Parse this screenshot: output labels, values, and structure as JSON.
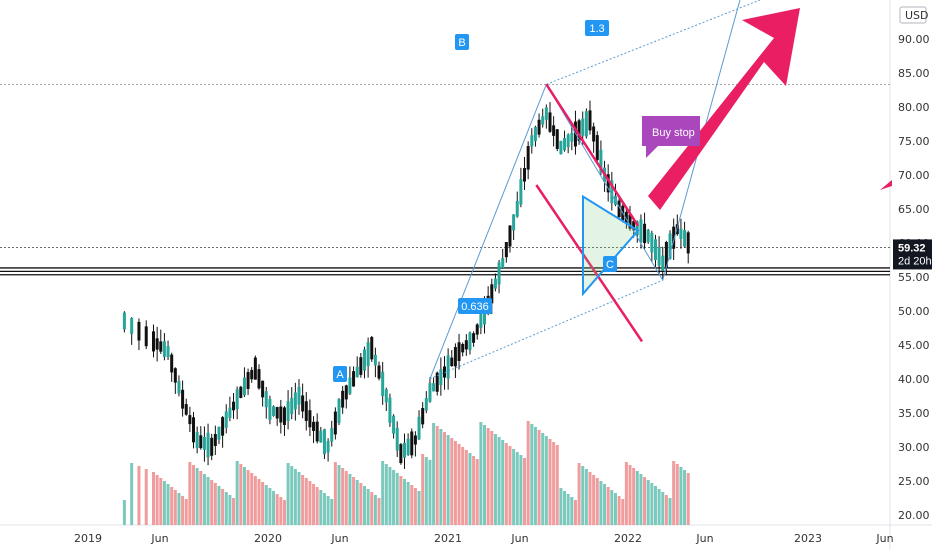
{
  "chart_data": {
    "type": "candlestick",
    "currency_label": "USD",
    "y_ticks": [
      "90.00",
      "85.00",
      "80.00",
      "75.00",
      "70.00",
      "65.00",
      "60.00",
      "55.00",
      "50.00",
      "45.00",
      "40.00",
      "35.00",
      "30.00",
      "25.00",
      "20.00"
    ],
    "x_ticks": [
      "2019",
      "Jun",
      "2020",
      "Jun",
      "2021",
      "Jun",
      "2022",
      "Jun",
      "2023",
      "Jun"
    ],
    "ylim": [
      18.5,
      91
    ],
    "last_price": "59.32",
    "countdown": "2d 20h",
    "price_anchor_points": [
      {
        "x": "2018-09",
        "price": 48.5
      },
      {
        "x": "2018-11",
        "price": 45.5
      },
      {
        "x": "2018-12",
        "price": 44.0
      },
      {
        "x": "2019-01",
        "price": 37.0
      },
      {
        "x": "2019-02",
        "price": 31.0
      },
      {
        "x": "2019-03",
        "price": 30.0
      },
      {
        "x": "2019-04",
        "price": 34.0
      },
      {
        "x": "2019-05",
        "price": 38.0
      },
      {
        "x": "2019-06",
        "price": 41.5
      },
      {
        "x": "2019-07",
        "price": 35.5
      },
      {
        "x": "2019-08",
        "price": 34.5
      },
      {
        "x": "2019-09",
        "price": 37.5
      },
      {
        "x": "2019-10",
        "price": 33.0
      },
      {
        "x": "2019-11",
        "price": 30.0
      },
      {
        "x": "2019-12",
        "price": 37.0
      },
      {
        "x": "2020-01",
        "price": 41.0
      },
      {
        "x": "2020-02",
        "price": 44.5
      },
      {
        "x": "2020-03",
        "price": 37.5
      },
      {
        "x": "2020-04",
        "price": 29.0
      },
      {
        "x": "2020-05",
        "price": 31.0
      },
      {
        "x": "2020-06",
        "price": 38.0
      },
      {
        "x": "2020-07",
        "price": 41.0
      },
      {
        "x": "2020-08",
        "price": 44.0
      },
      {
        "x": "2020-09",
        "price": 46.0
      },
      {
        "x": "2020-10",
        "price": 51.0
      },
      {
        "x": "2020-11",
        "price": 57.0
      },
      {
        "x": "2020-12",
        "price": 65.0
      },
      {
        "x": "2021-01",
        "price": 75.0
      },
      {
        "x": "2021-02",
        "price": 79.0
      },
      {
        "x": "2021-03",
        "price": 74.0
      },
      {
        "x": "2021-04",
        "price": 76.0
      },
      {
        "x": "2021-05",
        "price": 78.0
      },
      {
        "x": "2021-06",
        "price": 70.0
      },
      {
        "x": "2021-07",
        "price": 65.0
      },
      {
        "x": "2021-08",
        "price": 62.5
      },
      {
        "x": "2021-09",
        "price": 61.0
      },
      {
        "x": "2021-10",
        "price": 57.0
      },
      {
        "x": "2021-11",
        "price": 62.0
      },
      {
        "x": "2021-12",
        "price": 59.32
      }
    ],
    "horizontal_levels": [
      59.32,
      56.3,
      55.8,
      55.3,
      83.3
    ],
    "elliott_points": [
      {
        "label": "A",
        "x": "2020-06",
        "price": 40.0
      },
      {
        "label": "B",
        "x": "2021-02",
        "price": 83.3
      },
      {
        "label": "C",
        "x": "2021-10",
        "price": 54.5
      }
    ],
    "fib_labels": [
      "1.3",
      "0.636"
    ],
    "annotations": {
      "callout": "Buy stop"
    }
  }
}
